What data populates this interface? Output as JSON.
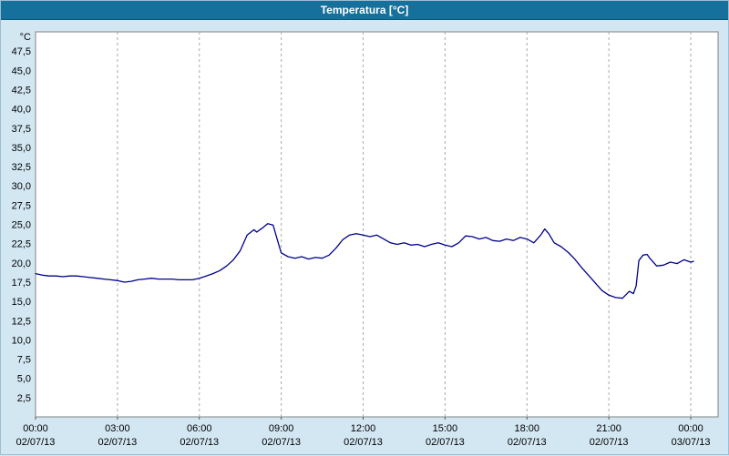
{
  "window": {
    "title": "Temperatura [°C]"
  },
  "colors": {
    "titlebar": "#15709b",
    "titlebar_text": "#ffffff",
    "background": "#d3e7f3",
    "plot_bg": "#ffffff",
    "plot_border": "#808080",
    "grid": "#aaaaaa",
    "tick": "#555555",
    "text": "#000000",
    "line": "#00008c"
  },
  "chart_data": {
    "type": "line",
    "title": "Temperatura [°C]",
    "ylabel": "°C",
    "xlabel": "",
    "ylim": [
      0,
      50
    ],
    "xlim": [
      0,
      25
    ],
    "grid": "vertical-dashed",
    "legend": "none",
    "yticks": [
      {
        "v": 47.5,
        "label": "47,5"
      },
      {
        "v": 45.0,
        "label": "45,0"
      },
      {
        "v": 42.5,
        "label": "42,5"
      },
      {
        "v": 40.0,
        "label": "40,0"
      },
      {
        "v": 37.5,
        "label": "37,5"
      },
      {
        "v": 35.0,
        "label": "35,0"
      },
      {
        "v": 32.5,
        "label": "32,5"
      },
      {
        "v": 30.0,
        "label": "30,0"
      },
      {
        "v": 27.5,
        "label": "27,5"
      },
      {
        "v": 25.0,
        "label": "25,0"
      },
      {
        "v": 22.5,
        "label": "22,5"
      },
      {
        "v": 20.0,
        "label": "20,0"
      },
      {
        "v": 17.5,
        "label": "17,5"
      },
      {
        "v": 15.0,
        "label": "15,0"
      },
      {
        "v": 12.5,
        "label": "12,5"
      },
      {
        "v": 10.0,
        "label": "10,0"
      },
      {
        "v": 7.5,
        "label": "7,5"
      },
      {
        "v": 5.0,
        "label": "5,0"
      },
      {
        "v": 2.5,
        "label": "2,5"
      }
    ],
    "xticks": [
      {
        "h": 0,
        "time": "00:00",
        "date": "02/07/13"
      },
      {
        "h": 3,
        "time": "03:00",
        "date": "02/07/13"
      },
      {
        "h": 6,
        "time": "06:00",
        "date": "02/07/13"
      },
      {
        "h": 9,
        "time": "09:00",
        "date": "02/07/13"
      },
      {
        "h": 12,
        "time": "12:00",
        "date": "02/07/13"
      },
      {
        "h": 15,
        "time": "15:00",
        "date": "02/07/13"
      },
      {
        "h": 18,
        "time": "18:00",
        "date": "02/07/13"
      },
      {
        "h": 21,
        "time": "21:00",
        "date": "02/07/13"
      },
      {
        "h": 24,
        "time": "00:00",
        "date": "03/07/13"
      }
    ],
    "series": [
      {
        "name": "Temperatura",
        "color": "#00008c",
        "points": [
          [
            0.0,
            18.6
          ],
          [
            0.25,
            18.4
          ],
          [
            0.5,
            18.3
          ],
          [
            0.75,
            18.3
          ],
          [
            1.0,
            18.2
          ],
          [
            1.25,
            18.3
          ],
          [
            1.5,
            18.3
          ],
          [
            1.75,
            18.2
          ],
          [
            2.0,
            18.1
          ],
          [
            2.25,
            18.0
          ],
          [
            2.5,
            17.9
          ],
          [
            2.75,
            17.8
          ],
          [
            3.0,
            17.7
          ],
          [
            3.25,
            17.5
          ],
          [
            3.5,
            17.6
          ],
          [
            3.75,
            17.8
          ],
          [
            4.0,
            17.9
          ],
          [
            4.25,
            18.0
          ],
          [
            4.5,
            17.9
          ],
          [
            4.75,
            17.9
          ],
          [
            5.0,
            17.9
          ],
          [
            5.25,
            17.8
          ],
          [
            5.5,
            17.8
          ],
          [
            5.75,
            17.8
          ],
          [
            6.0,
            18.0
          ],
          [
            6.25,
            18.3
          ],
          [
            6.5,
            18.6
          ],
          [
            6.75,
            19.0
          ],
          [
            7.0,
            19.6
          ],
          [
            7.25,
            20.4
          ],
          [
            7.5,
            21.6
          ],
          [
            7.75,
            23.6
          ],
          [
            8.0,
            24.3
          ],
          [
            8.1,
            24.0
          ],
          [
            8.3,
            24.5
          ],
          [
            8.5,
            25.1
          ],
          [
            8.7,
            24.9
          ],
          [
            8.9,
            22.5
          ],
          [
            9.0,
            21.3
          ],
          [
            9.25,
            20.8
          ],
          [
            9.5,
            20.6
          ],
          [
            9.75,
            20.8
          ],
          [
            10.0,
            20.5
          ],
          [
            10.25,
            20.7
          ],
          [
            10.5,
            20.6
          ],
          [
            10.75,
            21.0
          ],
          [
            11.0,
            21.9
          ],
          [
            11.25,
            23.0
          ],
          [
            11.5,
            23.6
          ],
          [
            11.75,
            23.8
          ],
          [
            12.0,
            23.6
          ],
          [
            12.25,
            23.4
          ],
          [
            12.5,
            23.6
          ],
          [
            12.75,
            23.1
          ],
          [
            13.0,
            22.6
          ],
          [
            13.25,
            22.4
          ],
          [
            13.5,
            22.6
          ],
          [
            13.75,
            22.3
          ],
          [
            14.0,
            22.4
          ],
          [
            14.25,
            22.1
          ],
          [
            14.5,
            22.4
          ],
          [
            14.75,
            22.6
          ],
          [
            15.0,
            22.3
          ],
          [
            15.25,
            22.1
          ],
          [
            15.5,
            22.6
          ],
          [
            15.75,
            23.5
          ],
          [
            16.0,
            23.4
          ],
          [
            16.25,
            23.1
          ],
          [
            16.5,
            23.3
          ],
          [
            16.75,
            22.9
          ],
          [
            17.0,
            22.8
          ],
          [
            17.25,
            23.1
          ],
          [
            17.5,
            22.9
          ],
          [
            17.75,
            23.3
          ],
          [
            18.0,
            23.1
          ],
          [
            18.25,
            22.6
          ],
          [
            18.5,
            23.6
          ],
          [
            18.65,
            24.4
          ],
          [
            18.8,
            23.8
          ],
          [
            19.0,
            22.6
          ],
          [
            19.25,
            22.1
          ],
          [
            19.5,
            21.4
          ],
          [
            19.75,
            20.5
          ],
          [
            20.0,
            19.4
          ],
          [
            20.25,
            18.4
          ],
          [
            20.5,
            17.4
          ],
          [
            20.75,
            16.4
          ],
          [
            21.0,
            15.8
          ],
          [
            21.25,
            15.5
          ],
          [
            21.5,
            15.4
          ],
          [
            21.75,
            16.3
          ],
          [
            21.9,
            16.0
          ],
          [
            22.0,
            17.0
          ],
          [
            22.1,
            20.3
          ],
          [
            22.25,
            21.0
          ],
          [
            22.4,
            21.1
          ],
          [
            22.5,
            20.6
          ],
          [
            22.75,
            19.6
          ],
          [
            23.0,
            19.7
          ],
          [
            23.25,
            20.1
          ],
          [
            23.5,
            19.9
          ],
          [
            23.75,
            20.4
          ],
          [
            24.0,
            20.1
          ],
          [
            24.1,
            20.2
          ]
        ]
      }
    ]
  }
}
